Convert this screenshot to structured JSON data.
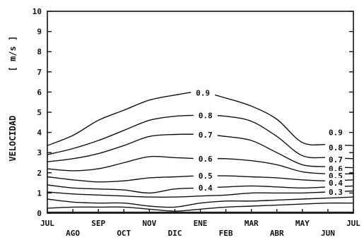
{
  "chart_data": {
    "type": "line",
    "title": "",
    "xlabel": "",
    "ylabel": "VELOCIDAD",
    "ylabel_unit": "[ m/s ]",
    "ylim": [
      0,
      10
    ],
    "yticks": [
      "0",
      "1",
      "2",
      "3",
      "4",
      "5",
      "6",
      "7",
      "8",
      "9",
      "10"
    ],
    "xlim": [
      0,
      12
    ],
    "x_month_labels": [
      {
        "x": 0,
        "label": "JUL",
        "row": 0
      },
      {
        "x": 1,
        "label": "AGO",
        "row": 1
      },
      {
        "x": 2,
        "label": "SEP",
        "row": 0
      },
      {
        "x": 3,
        "label": "OCT",
        "row": 1
      },
      {
        "x": 4,
        "label": "NOV",
        "row": 0
      },
      {
        "x": 5,
        "label": "DIC",
        "row": 1
      },
      {
        "x": 6,
        "label": "ENE",
        "row": 0
      },
      {
        "x": 7,
        "label": "FEB",
        "row": 1
      },
      {
        "x": 8,
        "label": "MAR",
        "row": 0
      },
      {
        "x": 9,
        "label": "ABR",
        "row": 1
      },
      {
        "x": 10,
        "label": "MAY",
        "row": 0
      },
      {
        "x": 11,
        "label": "JUN",
        "row": 1
      },
      {
        "x": 12,
        "label": "JUL",
        "row": 0
      }
    ],
    "grid": false,
    "series": [
      {
        "label": "",
        "x": [
          0,
          1,
          2,
          3,
          4,
          5,
          6,
          7,
          8,
          9,
          10,
          11,
          12
        ],
        "y": [
          0.05,
          0.05,
          0.05,
          0.05,
          0.05,
          0.05,
          0.05,
          0.05,
          0.05,
          0.05,
          0.05,
          0.05,
          0.05
        ]
      },
      {
        "label": "",
        "x": [
          0,
          1,
          2,
          3,
          4,
          5,
          6,
          7,
          8,
          9,
          10,
          11,
          12
        ],
        "y": [
          0.25,
          0.3,
          0.3,
          0.3,
          0.2,
          0.1,
          0.2,
          0.3,
          0.35,
          0.4,
          0.45,
          0.5,
          0.5
        ]
      },
      {
        "label": "",
        "x": [
          0,
          1,
          2,
          3,
          4,
          5,
          6,
          7,
          8,
          9,
          10,
          11,
          12
        ],
        "y": [
          0.7,
          0.55,
          0.5,
          0.5,
          0.35,
          0.3,
          0.5,
          0.6,
          0.6,
          0.65,
          0.7,
          0.75,
          0.8
        ]
      },
      {
        "label": "0.3",
        "label_at": 11.35,
        "x": [
          0,
          1,
          2,
          3,
          4,
          5,
          6,
          7,
          8,
          9,
          10,
          11,
          12
        ],
        "y": [
          1.05,
          0.95,
          0.9,
          0.85,
          0.8,
          0.8,
          0.85,
          0.9,
          1.0,
          1.0,
          1.0,
          1.05,
          1.1
        ]
      },
      {
        "label": "0.4",
        "label_at": 6.2,
        "x": [
          0,
          1,
          2,
          3,
          4,
          5,
          6,
          7,
          8,
          9,
          10,
          11,
          12
        ],
        "y": [
          1.4,
          1.25,
          1.2,
          1.15,
          1.0,
          1.2,
          1.25,
          1.3,
          1.35,
          1.3,
          1.25,
          1.3,
          1.35
        ]
      },
      {
        "label": "0.5",
        "label_at": 6.2,
        "x": [
          0,
          1,
          2,
          3,
          4,
          5,
          6,
          7,
          8,
          9,
          10,
          11,
          12
        ],
        "y": [
          1.8,
          1.65,
          1.55,
          1.6,
          1.75,
          1.8,
          1.85,
          1.85,
          1.8,
          1.75,
          1.65,
          1.6,
          1.65
        ]
      },
      {
        "label": "0.6",
        "label_at": 6.2,
        "x": [
          0,
          1,
          2,
          3,
          4,
          5,
          6,
          7,
          8,
          9,
          10,
          11,
          12
        ],
        "y": [
          2.2,
          2.1,
          2.2,
          2.5,
          2.8,
          2.75,
          2.7,
          2.7,
          2.6,
          2.4,
          2.05,
          1.95,
          1.95
        ]
      },
      {
        "label": "0.7",
        "label_at": 6.2,
        "x": [
          0,
          1,
          2,
          3,
          4,
          5,
          6,
          7,
          8,
          9,
          10,
          11,
          12
        ],
        "y": [
          2.55,
          2.7,
          2.95,
          3.35,
          3.8,
          3.9,
          3.9,
          3.8,
          3.6,
          3.0,
          2.4,
          2.3,
          2.25
        ]
      },
      {
        "label": "0.8",
        "label_at": 6.2,
        "x": [
          0,
          1,
          2,
          3,
          4,
          5,
          6,
          7,
          8,
          9,
          10,
          11,
          12
        ],
        "y": [
          2.9,
          3.2,
          3.6,
          4.1,
          4.6,
          4.8,
          4.85,
          4.8,
          4.55,
          3.8,
          2.85,
          2.75,
          2.7
        ]
      },
      {
        "label": "0.9",
        "label_at": 6.1,
        "x": [
          0,
          1,
          2,
          3,
          4,
          5,
          6,
          7,
          8,
          9,
          10,
          11,
          12
        ],
        "y": [
          3.35,
          3.85,
          4.6,
          5.1,
          5.6,
          5.85,
          6.0,
          5.7,
          5.3,
          4.65,
          3.5,
          3.4,
          3.35
        ]
      }
    ],
    "right_labels": [
      "0.9",
      "0.8",
      "0.7",
      "0.6",
      "0.5",
      "0.4",
      "0.3"
    ]
  }
}
